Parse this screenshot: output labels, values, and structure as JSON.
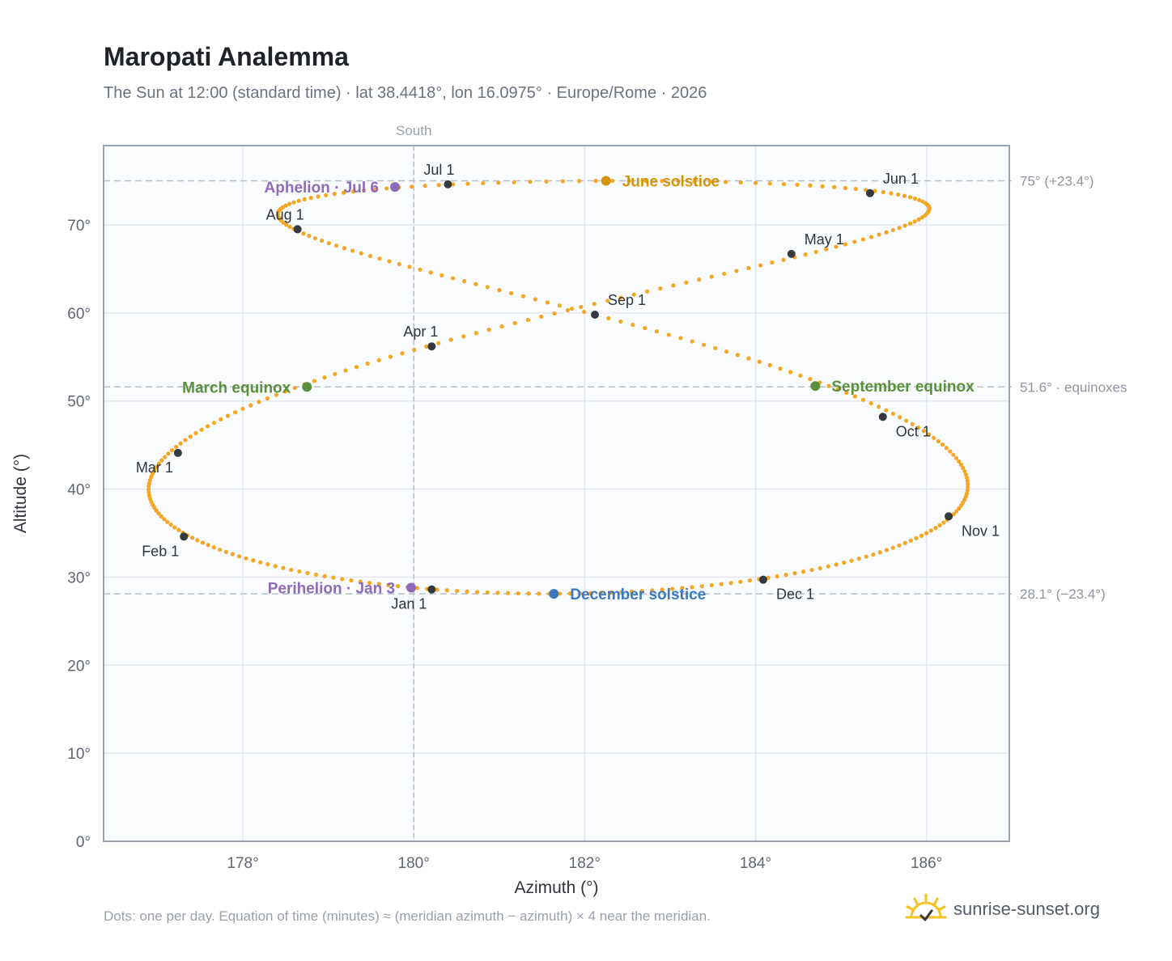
{
  "page": {
    "title": "Maropati Analemma",
    "subtitle": "The Sun at 12:00 (standard time) · lat 38.4418°, lon 16.0975° · Europe/Rome · 2026",
    "footnote": "Dots: one per day. Equation of time (minutes) ≈ (meridian azimuth − azimuth) × 4 near the meridian.",
    "brand": "sunrise-sunset.org",
    "brand_icon": "sunrise-logo-icon"
  },
  "colors": {
    "analemma": "#f5a623",
    "month": "#343a40",
    "june_solstice": "#d4940a",
    "december_solstice": "#3a7abf",
    "equinox": "#5a8f3c",
    "apsis": "#8e6bb8",
    "guide": "#b8c0cc",
    "plot_bg": "#f9fbfd",
    "grid": "#e4e8ee",
    "frame": "#9aa5b4",
    "axis_text": "#5f6670",
    "right_text": "#8d949e"
  },
  "chart_data": {
    "type": "scatter",
    "title": "Maropati Analemma",
    "xlabel": "Azimuth (°)",
    "ylabel": "Altitude (°)",
    "xlim": [
      176.37,
      186.97
    ],
    "ylim": [
      0,
      79
    ],
    "x_ticks": [
      178,
      180,
      182,
      184,
      186
    ],
    "x_tick_labels": [
      "178°",
      "180°",
      "182°",
      "184°",
      "186°"
    ],
    "y_ticks": [
      0,
      10,
      20,
      30,
      40,
      50,
      60,
      70
    ],
    "y_tick_labels": [
      "0°",
      "10°",
      "20°",
      "30°",
      "40°",
      "50°",
      "60°",
      "70°"
    ],
    "grid": true,
    "meridian": {
      "azimuth": 180,
      "label": "South"
    },
    "reference_lines": [
      {
        "altitude": 75.0,
        "label": "75° (+23.4°)"
      },
      {
        "altitude": 51.6,
        "label": "51.6° · equinoxes"
      },
      {
        "altitude": 28.1,
        "label": "28.1° (−23.4°)"
      }
    ],
    "year": 2026,
    "month_markers": [
      {
        "label": "Jan 1",
        "azimuth": 180.21,
        "altitude": 28.6,
        "anchor": "below-left"
      },
      {
        "label": "Feb 1",
        "azimuth": 177.31,
        "altitude": 34.6,
        "anchor": "below-left"
      },
      {
        "label": "Mar 1",
        "azimuth": 177.24,
        "altitude": 44.1,
        "anchor": "below-left"
      },
      {
        "label": "Apr 1",
        "azimuth": 180.21,
        "altitude": 56.2,
        "anchor": "above-left"
      },
      {
        "label": "May 1",
        "azimuth": 184.42,
        "altitude": 66.7,
        "anchor": "above-right"
      },
      {
        "label": "Jun 1",
        "azimuth": 185.34,
        "altitude": 73.6,
        "anchor": "above-right"
      },
      {
        "label": "Jul 1",
        "azimuth": 180.4,
        "altitude": 74.6,
        "anchor": "above-left"
      },
      {
        "label": "Aug 1",
        "azimuth": 178.64,
        "altitude": 69.5,
        "anchor": "above-left"
      },
      {
        "label": "Sep 1",
        "azimuth": 182.12,
        "altitude": 59.8,
        "anchor": "above-right"
      },
      {
        "label": "Oct 1",
        "azimuth": 185.49,
        "altitude": 48.2,
        "anchor": "below-right"
      },
      {
        "label": "Nov 1",
        "azimuth": 186.26,
        "altitude": 36.9,
        "anchor": "below-right"
      },
      {
        "label": "Dec 1",
        "azimuth": 184.09,
        "altitude": 29.7,
        "anchor": "below-right"
      }
    ],
    "events": [
      {
        "label": "June solstice",
        "azimuth": 182.25,
        "altitude": 75.0,
        "color": "#d4940a",
        "side": "right"
      },
      {
        "label": "December solstice",
        "azimuth": 181.64,
        "altitude": 28.1,
        "color": "#3a7abf",
        "side": "right"
      },
      {
        "label": "March equinox",
        "azimuth": 178.75,
        "altitude": 51.6,
        "color": "#5a8f3c",
        "side": "left"
      },
      {
        "label": "September equinox",
        "azimuth": 184.7,
        "altitude": 51.7,
        "color": "#5a8f3c",
        "side": "right"
      },
      {
        "label": "Aphelion · Jul 6",
        "azimuth": 179.78,
        "altitude": 74.3,
        "color": "#8e6bb8",
        "side": "left"
      },
      {
        "label": "Perihelion · Jan 3",
        "azimuth": 179.97,
        "altitude": 28.8,
        "color": "#8e6bb8",
        "side": "left"
      }
    ],
    "daily_dots": "one per day, computed for 12:00 standard time"
  }
}
